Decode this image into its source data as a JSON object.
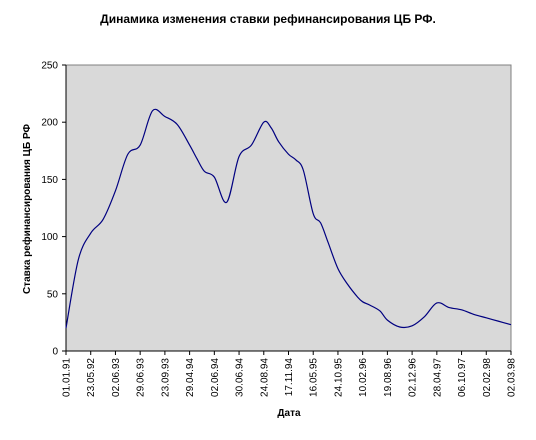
{
  "chart_data": {
    "type": "line",
    "title": "Динамика изменения ставки рефинансирования ЦБ РФ.",
    "xlabel": "Дата",
    "ylabel": "Ставка рефинансирования ЦБ РФ",
    "ylim": [
      0,
      250
    ],
    "y_ticks": [
      0,
      50,
      100,
      150,
      200,
      250
    ],
    "x_ticks": [
      "01.01.91",
      "23.05.92",
      "02.06.93",
      "29.06.93",
      "23.09.93",
      "29.04.94",
      "02.06.94",
      "30.06.94",
      "24.08.94",
      "17.11.94",
      "16.05.95",
      "24.10.95",
      "10.02.96",
      "19.08.96",
      "02.12.96",
      "28.04.97",
      "06.10.97",
      "02.02.98",
      "02.03.98"
    ],
    "grid": false,
    "legend": "none",
    "plot_background": "#d9d9d9",
    "line_color": "#000080",
    "x": [
      0,
      0.5,
      1,
      1.5,
      2,
      2.5,
      3,
      3.5,
      4,
      4.5,
      5,
      5.3,
      5.6,
      6,
      6.5,
      7,
      7.5,
      8,
      8.3,
      8.6,
      9,
      9.3,
      9.6,
      10,
      10.3,
      10.6,
      11,
      11.4,
      11.8,
      12,
      12.3,
      12.7,
      13,
      13.5,
      14,
      14.5,
      15,
      15.5,
      16,
      16.5,
      17,
      17.5,
      18
    ],
    "y": [
      20,
      80,
      103,
      115,
      140,
      172,
      180,
      210,
      205,
      198,
      180,
      168,
      157,
      152,
      130,
      170,
      180,
      200,
      195,
      183,
      172,
      167,
      158,
      120,
      112,
      95,
      72,
      58,
      47,
      43,
      40,
      35,
      27,
      21,
      22,
      30,
      42,
      38,
      36,
      32,
      29,
      26,
      23
    ]
  }
}
